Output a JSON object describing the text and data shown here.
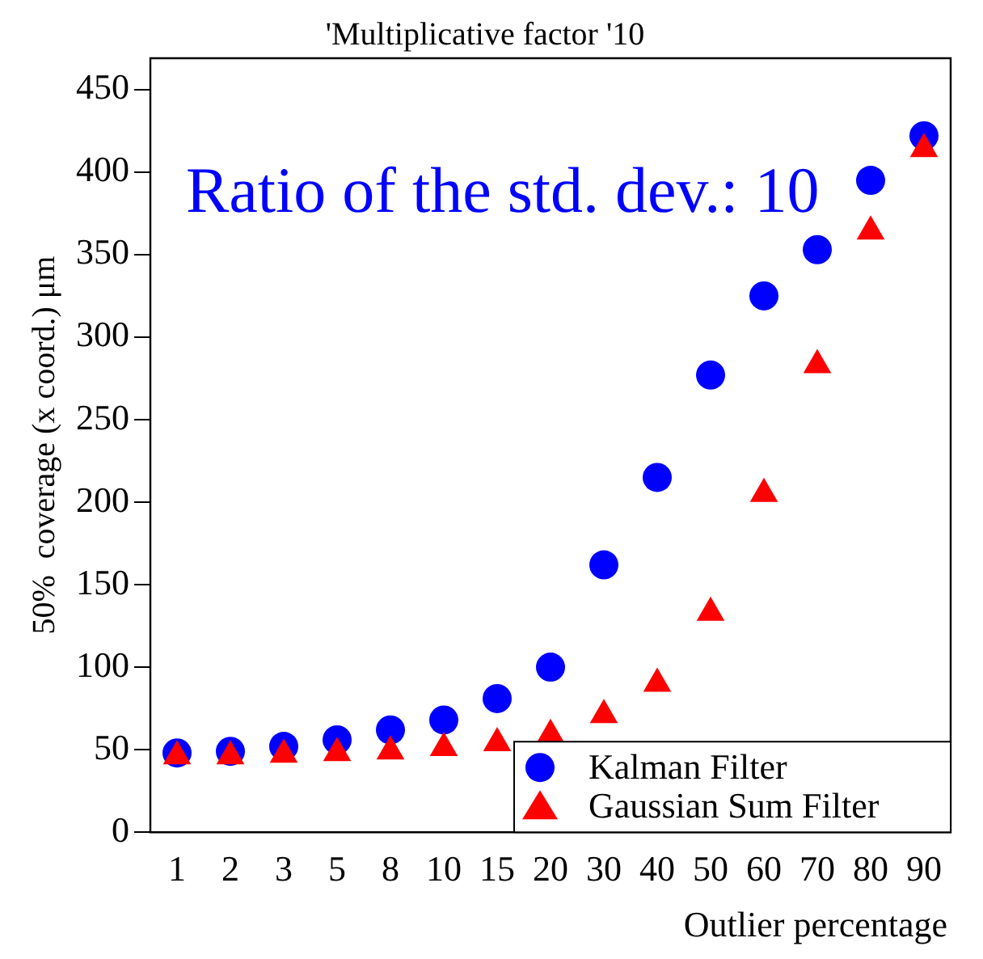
{
  "chart_data": {
    "type": "scatter",
    "title": "'Multiplicative factor '10",
    "xlabel": "Outlier percentage",
    "ylabel": "50%  coverage (x coord.) μm",
    "annotations": [
      "Ratio of the std. dev.: 10"
    ],
    "categories": [
      "1",
      "2",
      "3",
      "5",
      "8",
      "10",
      "15",
      "20",
      "30",
      "40",
      "50",
      "60",
      "70",
      "80",
      "90"
    ],
    "series": [
      {
        "name": "Kalman Filter",
        "color": "#0000ff",
        "marker": "circle",
        "values": [
          48,
          49,
          52,
          56,
          62,
          68,
          81,
          100,
          162,
          215,
          277,
          325,
          353,
          395,
          422
        ]
      },
      {
        "name": "Gaussian Sum Filter",
        "color": "#ff0000",
        "marker": "triangle",
        "values": [
          46,
          46,
          47,
          48,
          49,
          51,
          54,
          59,
          71,
          90,
          133,
          205,
          283,
          364,
          414
        ]
      }
    ],
    "ylim": [
      0,
      469
    ],
    "yticks": [
      0,
      50,
      100,
      150,
      200,
      250,
      300,
      350,
      400,
      450
    ],
    "grid": false,
    "legend": "bottom right"
  }
}
